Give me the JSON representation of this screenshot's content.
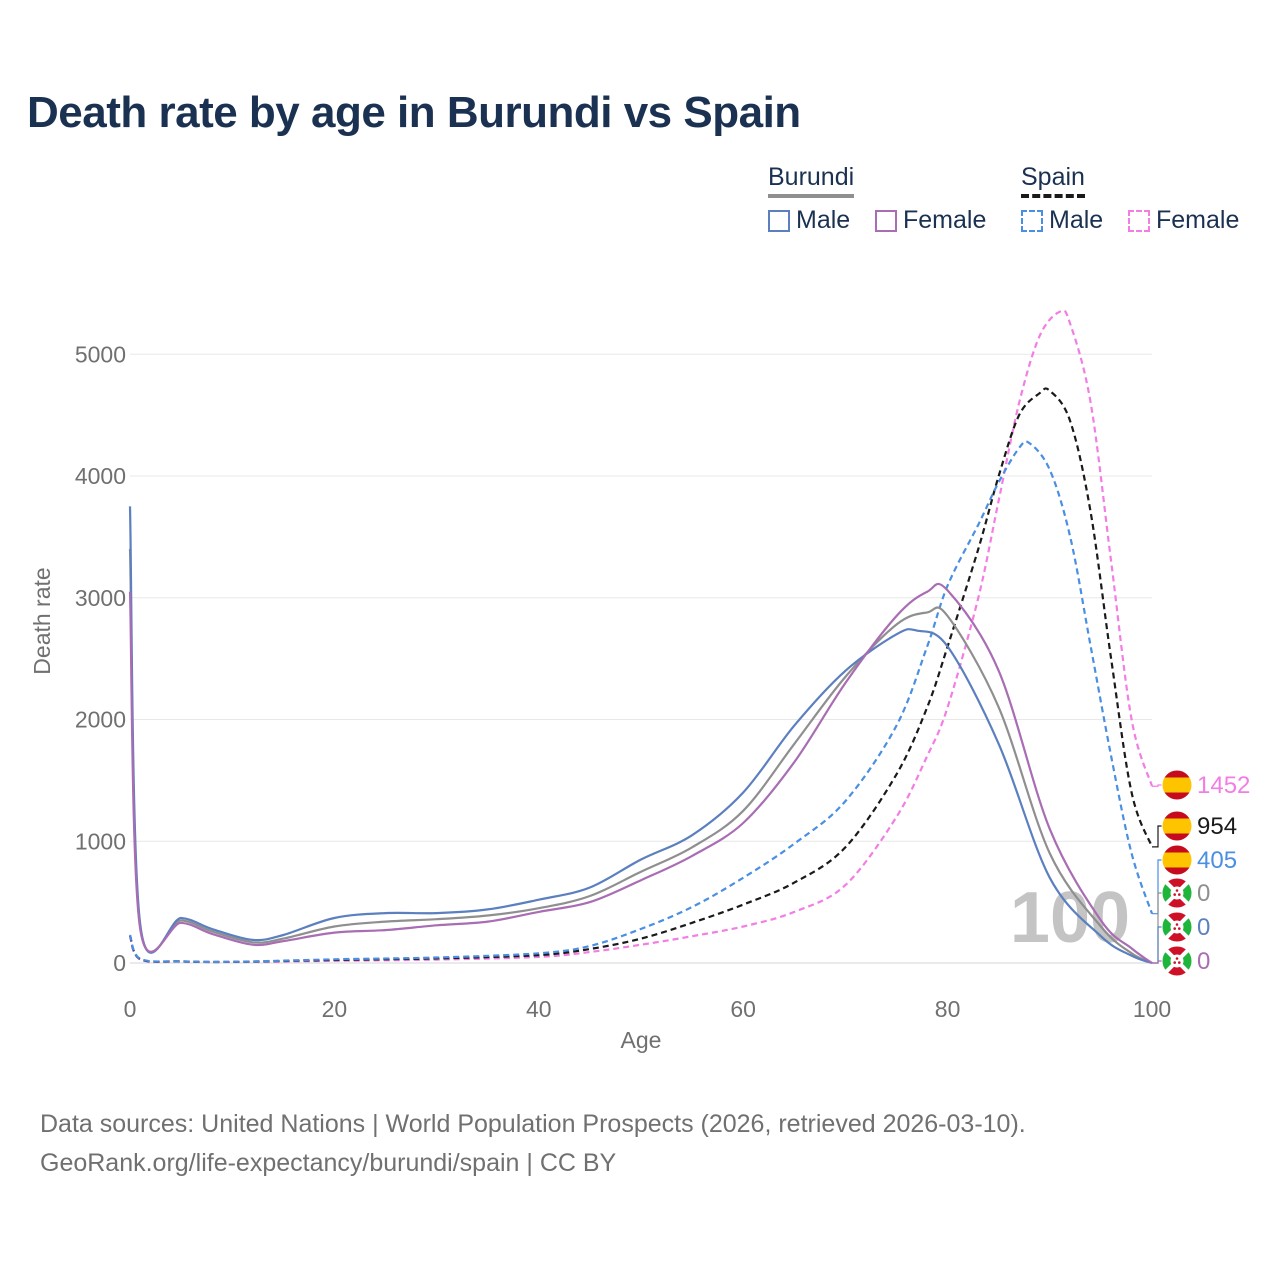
{
  "title": "Death rate by age in Burundi vs Spain",
  "legend": {
    "groups": [
      {
        "name": "Burundi",
        "items": [
          {
            "label": "Male",
            "color": "#5b7fbf",
            "style": "solid"
          },
          {
            "label": "Female",
            "color": "#a86db3",
            "style": "solid"
          }
        ]
      },
      {
        "name": "Spain",
        "items": [
          {
            "label": "Male",
            "color": "#4a8fe2",
            "style": "dashed"
          },
          {
            "label": "Female",
            "color": "#f27ee4",
            "style": "dashed"
          }
        ]
      }
    ]
  },
  "sources": {
    "line1": "Data sources: United Nations | World Population Prospects (2026, retrieved 2026-03-10).",
    "line2": "GeoRank.org/life-expectancy/burundi/spain | CC BY"
  },
  "chart_data": {
    "type": "line",
    "title": "Death rate by age in Burundi vs Spain",
    "xlabel": "Age",
    "ylabel": "Death rate",
    "xlim": [
      0,
      100
    ],
    "ylim": [
      0,
      5500
    ],
    "xticks": [
      0,
      20,
      40,
      60,
      80,
      100
    ],
    "yticks": [
      0,
      1000,
      2000,
      3000,
      4000,
      5000
    ],
    "watermark": "100",
    "series": [
      {
        "name": "Spain Female",
        "country": "Spain",
        "color": "#f27ee4",
        "dash": true,
        "x": [
          0,
          1,
          5,
          10,
          20,
          30,
          40,
          45,
          50,
          55,
          60,
          65,
          70,
          75,
          78,
          80,
          83,
          85,
          87,
          89,
          91,
          92,
          94,
          96,
          98,
          100
        ],
        "y": [
          220,
          30,
          12,
          8,
          18,
          28,
          50,
          90,
          150,
          220,
          300,
          420,
          640,
          1200,
          1700,
          2100,
          3000,
          3800,
          4600,
          5150,
          5350,
          5250,
          4600,
          3300,
          2000,
          1452
        ],
        "end_label": "1452",
        "end_label_color": "#f27ee4"
      },
      {
        "name": "Spain Total",
        "country": "Spain",
        "color": "#1a1a1a",
        "dash": true,
        "x": [
          0,
          1,
          5,
          10,
          20,
          30,
          40,
          45,
          50,
          55,
          60,
          65,
          70,
          75,
          78,
          80,
          83,
          85,
          87,
          89,
          90,
          92,
          94,
          96,
          98,
          100
        ],
        "y": [
          225,
          32,
          13,
          9,
          25,
          38,
          65,
          115,
          200,
          330,
          480,
          660,
          950,
          1550,
          2100,
          2600,
          3400,
          4000,
          4500,
          4680,
          4700,
          4450,
          3700,
          2500,
          1400,
          954
        ],
        "end_label": "954",
        "end_label_color": "#1a1a1a"
      },
      {
        "name": "Spain Male",
        "country": "Spain",
        "color": "#4a8fe2",
        "dash": true,
        "x": [
          0,
          1,
          5,
          10,
          20,
          30,
          40,
          45,
          50,
          55,
          60,
          65,
          70,
          75,
          78,
          80,
          83,
          85,
          87,
          88,
          90,
          92,
          94,
          96,
          98,
          100
        ],
        "y": [
          230,
          35,
          14,
          10,
          30,
          45,
          80,
          140,
          280,
          460,
          700,
          980,
          1330,
          1950,
          2600,
          3100,
          3600,
          3950,
          4230,
          4270,
          4050,
          3500,
          2600,
          1700,
          900,
          405
        ],
        "end_label": "405",
        "end_label_color": "#4a8fe2"
      },
      {
        "name": "Burundi Total",
        "country": "Burundi",
        "color": "#8f8f8f",
        "dash": false,
        "x": [
          0,
          1,
          5,
          8,
          12,
          15,
          20,
          25,
          30,
          35,
          40,
          45,
          50,
          55,
          60,
          65,
          70,
          75,
          78,
          80,
          85,
          90,
          95,
          98,
          100
        ],
        "y": [
          3400,
          300,
          350,
          260,
          170,
          200,
          300,
          340,
          360,
          390,
          450,
          550,
          750,
          950,
          1250,
          1800,
          2350,
          2780,
          2880,
          2850,
          2100,
          900,
          300,
          80,
          0
        ],
        "end_label": "0",
        "end_label_color": "#8f8f8f"
      },
      {
        "name": "Burundi Male",
        "country": "Burundi",
        "color": "#5b7fbf",
        "dash": false,
        "x": [
          0,
          1,
          5,
          8,
          12,
          15,
          20,
          25,
          30,
          35,
          40,
          45,
          50,
          55,
          60,
          65,
          70,
          75,
          77,
          80,
          85,
          90,
          95,
          98,
          100
        ],
        "y": [
          3750,
          320,
          370,
          280,
          190,
          230,
          370,
          410,
          410,
          440,
          520,
          620,
          850,
          1050,
          1400,
          1950,
          2400,
          2700,
          2730,
          2600,
          1800,
          700,
          220,
          60,
          0
        ],
        "end_label": "0",
        "end_label_color": "#5b7fbf"
      },
      {
        "name": "Burundi Female",
        "country": "Burundi",
        "color": "#a86db3",
        "dash": false,
        "x": [
          0,
          1,
          5,
          8,
          12,
          15,
          20,
          25,
          30,
          35,
          40,
          45,
          50,
          55,
          60,
          65,
          70,
          75,
          78,
          80,
          85,
          90,
          95,
          98,
          100
        ],
        "y": [
          3050,
          280,
          330,
          240,
          150,
          180,
          250,
          270,
          310,
          340,
          420,
          500,
          680,
          880,
          1150,
          1650,
          2300,
          2850,
          3050,
          3060,
          2400,
          1100,
          350,
          120,
          0
        ],
        "end_label": "0",
        "end_label_color": "#a86db3"
      }
    ]
  }
}
